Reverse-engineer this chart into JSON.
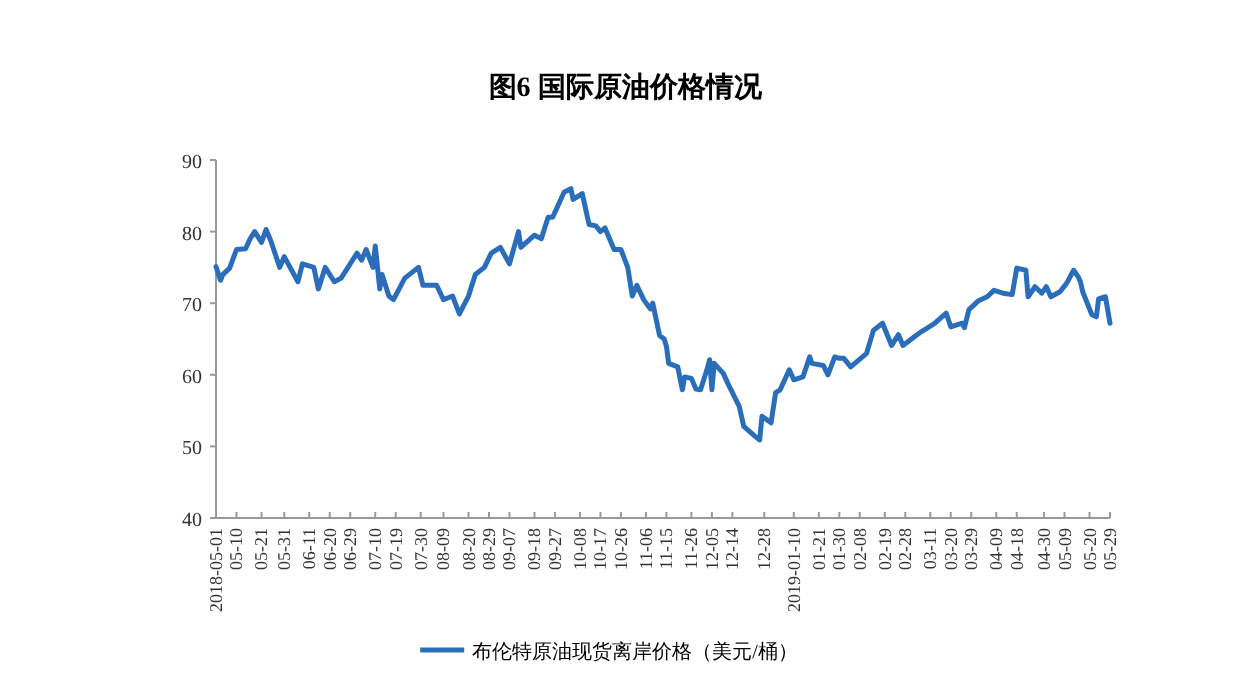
{
  "chart_data": {
    "type": "line",
    "title": "图6 国际原油价格情况",
    "xlim": [
      "2018-05-01",
      "2019-05-29"
    ],
    "ylim": [
      40,
      90
    ],
    "yticks": [
      40,
      50,
      60,
      70,
      80,
      90
    ],
    "xticks": [
      {
        "value": "2018-05-01",
        "label": "2018-05-01"
      },
      {
        "value": "2018-05-10",
        "label": "05-10"
      },
      {
        "value": "2018-05-21",
        "label": "05-21"
      },
      {
        "value": "2018-05-31",
        "label": "05-31"
      },
      {
        "value": "2018-06-11",
        "label": "06-11"
      },
      {
        "value": "2018-06-20",
        "label": "06-20"
      },
      {
        "value": "2018-06-29",
        "label": "06-29"
      },
      {
        "value": "2018-07-10",
        "label": "07-10"
      },
      {
        "value": "2018-07-19",
        "label": "07-19"
      },
      {
        "value": "2018-07-30",
        "label": "07-30"
      },
      {
        "value": "2018-08-09",
        "label": "08-09"
      },
      {
        "value": "2018-08-20",
        "label": "08-20"
      },
      {
        "value": "2018-08-29",
        "label": "08-29"
      },
      {
        "value": "2018-09-07",
        "label": "09-07"
      },
      {
        "value": "2018-09-18",
        "label": "09-18"
      },
      {
        "value": "2018-09-27",
        "label": "09-27"
      },
      {
        "value": "2018-10-08",
        "label": "10-08"
      },
      {
        "value": "2018-10-17",
        "label": "10-17"
      },
      {
        "value": "2018-10-26",
        "label": "10-26"
      },
      {
        "value": "2018-11-06",
        "label": "11-06"
      },
      {
        "value": "2018-11-15",
        "label": "11-15"
      },
      {
        "value": "2018-11-26",
        "label": "11-26"
      },
      {
        "value": "2018-12-05",
        "label": "12-05"
      },
      {
        "value": "2018-12-14",
        "label": "12-14"
      },
      {
        "value": "2018-12-28",
        "label": "12-28"
      },
      {
        "value": "2019-01-10",
        "label": "2019-01-10"
      },
      {
        "value": "2019-01-21",
        "label": "01-21"
      },
      {
        "value": "2019-01-30",
        "label": "01-30"
      },
      {
        "value": "2019-02-08",
        "label": "02-08"
      },
      {
        "value": "2019-02-19",
        "label": "02-19"
      },
      {
        "value": "2019-02-28",
        "label": "02-28"
      },
      {
        "value": "2019-03-11",
        "label": "03-11"
      },
      {
        "value": "2019-03-20",
        "label": "03-20"
      },
      {
        "value": "2019-03-29",
        "label": "03-29"
      },
      {
        "value": "2019-04-09",
        "label": "04-09"
      },
      {
        "value": "2019-04-18",
        "label": "04-18"
      },
      {
        "value": "2019-04-30",
        "label": "04-30"
      },
      {
        "value": "2019-05-09",
        "label": "05-09"
      },
      {
        "value": "2019-05-20",
        "label": "05-20"
      },
      {
        "value": "2019-05-29",
        "label": "05-29"
      }
    ],
    "legend": "bottom",
    "grid": false,
    "marker": "none",
    "line_style": "solid",
    "series": [
      {
        "name": "布伦特原油现货离岸价格（美元/桶）",
        "color": "#2a6ebb",
        "x": [
          "2018-05-01",
          "2018-05-03",
          "2018-05-04",
          "2018-05-07",
          "2018-05-10",
          "2018-05-14",
          "2018-05-16",
          "2018-05-18",
          "2018-05-21",
          "2018-05-23",
          "2018-05-25",
          "2018-05-29",
          "2018-05-31",
          "2018-06-06",
          "2018-06-08",
          "2018-06-13",
          "2018-06-15",
          "2018-06-18",
          "2018-06-22",
          "2018-06-25",
          "2018-07-02",
          "2018-07-04",
          "2018-07-06",
          "2018-07-09",
          "2018-07-10",
          "2018-07-12",
          "2018-07-13",
          "2018-07-16",
          "2018-07-18",
          "2018-07-23",
          "2018-07-29",
          "2018-07-31",
          "2018-08-06",
          "2018-08-09",
          "2018-08-13",
          "2018-08-16",
          "2018-08-20",
          "2018-08-23",
          "2018-08-27",
          "2018-08-30",
          "2018-09-03",
          "2018-09-07",
          "2018-09-11",
          "2018-09-12",
          "2018-09-18",
          "2018-09-21",
          "2018-09-24",
          "2018-09-26",
          "2018-10-01",
          "2018-10-04",
          "2018-10-05",
          "2018-10-09",
          "2018-10-12",
          "2018-10-15",
          "2018-10-17",
          "2018-10-19",
          "2018-10-23",
          "2018-10-26",
          "2018-10-29",
          "2018-10-31",
          "2018-11-02",
          "2018-11-05",
          "2018-11-08",
          "2018-11-09",
          "2018-11-12",
          "2018-11-14",
          "2018-11-15",
          "2018-11-16",
          "2018-11-20",
          "2018-11-22",
          "2018-11-23",
          "2018-11-26",
          "2018-11-28",
          "2018-11-30",
          "2018-12-03",
          "2018-12-04",
          "2018-12-05",
          "2018-12-06",
          "2018-12-10",
          "2018-12-12",
          "2018-12-17",
          "2018-12-19",
          "2018-12-24",
          "2018-12-26",
          "2018-12-27",
          "2018-12-31",
          "2019-01-02",
          "2019-01-04",
          "2019-01-08",
          "2019-01-10",
          "2019-01-14",
          "2019-01-17",
          "2019-01-18",
          "2019-01-23",
          "2019-01-25",
          "2019-01-28",
          "2019-01-30",
          "2019-02-01",
          "2019-02-04",
          "2019-02-11",
          "2019-02-14",
          "2019-02-18",
          "2019-02-22",
          "2019-02-25",
          "2019-02-27",
          "2019-03-04",
          "2019-03-07",
          "2019-03-13",
          "2019-03-18",
          "2019-03-20",
          "2019-03-25",
          "2019-03-26",
          "2019-03-28",
          "2019-04-01",
          "2019-04-05",
          "2019-04-08",
          "2019-04-12",
          "2019-04-16",
          "2019-04-18",
          "2019-04-22",
          "2019-04-23",
          "2019-04-26",
          "2019-04-29",
          "2019-05-01",
          "2019-05-03",
          "2019-05-07",
          "2019-05-10",
          "2019-05-13",
          "2019-05-15",
          "2019-05-16",
          "2019-05-17",
          "2019-05-21",
          "2019-05-23",
          "2019-05-24",
          "2019-05-27",
          "2019-05-29"
        ],
        "values": [
          75.1,
          73.2,
          74,
          74.9,
          77.5,
          77.6,
          79,
          80,
          78.5,
          80.3,
          78.8,
          75,
          76.5,
          73,
          75.5,
          75,
          72,
          75,
          73,
          73.5,
          77,
          76,
          77.5,
          75,
          78,
          72,
          74,
          71,
          70.5,
          73.5,
          75,
          72.5,
          72.5,
          70.5,
          71,
          68.5,
          71,
          74,
          75,
          77,
          77.8,
          75.5,
          80,
          77.8,
          79.5,
          79,
          82,
          82,
          85.5,
          86,
          84.5,
          85.3,
          81,
          80.8,
          80,
          80.5,
          77.5,
          77.5,
          75,
          71,
          72.5,
          70.5,
          69.2,
          70,
          65.5,
          65,
          64,
          61.6,
          61.1,
          57.9,
          59.7,
          59.5,
          58,
          57.9,
          60.9,
          62.1,
          57.9,
          61.6,
          60.2,
          58.8,
          55.6,
          52.8,
          51.4,
          50.9,
          54.2,
          53.3,
          57.5,
          57.9,
          60.7,
          59.3,
          59.7,
          62.5,
          61.6,
          61.3,
          60,
          62.5,
          62.3,
          62.3,
          61.1,
          63,
          66.2,
          67.2,
          64.1,
          65.6,
          64.1,
          65.3,
          66,
          67.2,
          68.6,
          66.7,
          67.2,
          66.6,
          69.1,
          70.3,
          70.9,
          71.8,
          71.4,
          71.2,
          74.9,
          74.6,
          70.9,
          72.3,
          71.4,
          72.3,
          70.9,
          71.6,
          72.8,
          74.6,
          73.7,
          73,
          71.6,
          68.4,
          68.1,
          70.6,
          70.9,
          67.2
        ]
      }
    ]
  }
}
